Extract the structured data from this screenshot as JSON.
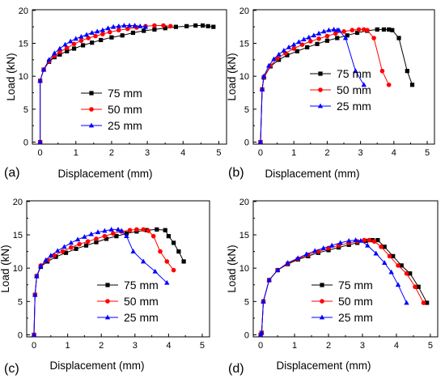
{
  "figure": {
    "series_styles": [
      {
        "name": "75 mm",
        "color": "#000000",
        "marker": "square"
      },
      {
        "name": "50 mm",
        "color": "#ff0000",
        "marker": "circle"
      },
      {
        "name": "25 mm",
        "color": "#0000ff",
        "marker": "triangle"
      }
    ]
  },
  "chart_data": [
    {
      "type": "line",
      "panel_label": "(a)",
      "xlabel": "Displacement (mm)",
      "ylabel": "Load (kN)",
      "xlim": [
        0,
        5
      ],
      "ylim": [
        0,
        20
      ],
      "xticks": [
        0,
        1,
        2,
        3,
        4,
        5
      ],
      "yticks": [
        0,
        5,
        10,
        15,
        20
      ],
      "legend": "center-right",
      "series": [
        {
          "name": "75 mm",
          "x": [
            0,
            0,
            0.1,
            0.25,
            0.4,
            0.55,
            0.75,
            0.95,
            1.2,
            1.45,
            1.7,
            2.0,
            2.3,
            2.6,
            2.9,
            3.2,
            3.5,
            3.8,
            4.1,
            4.35,
            4.55,
            4.7,
            4.85
          ],
          "y": [
            0,
            9.3,
            11.0,
            12.2,
            12.9,
            13.3,
            13.8,
            14.2,
            14.7,
            15.1,
            15.5,
            15.9,
            16.2,
            16.6,
            16.9,
            17.1,
            17.3,
            17.5,
            17.6,
            17.7,
            17.7,
            17.6,
            17.5
          ]
        },
        {
          "name": "50 mm",
          "x": [
            0,
            0,
            0.1,
            0.25,
            0.4,
            0.55,
            0.75,
            0.95,
            1.15,
            1.35,
            1.55,
            1.75,
            1.95,
            2.2,
            2.45,
            2.7,
            2.95,
            3.2,
            3.45,
            3.65
          ],
          "y": [
            0,
            9.3,
            11.0,
            12.3,
            13.1,
            13.7,
            14.3,
            14.9,
            15.4,
            15.8,
            16.1,
            16.4,
            16.7,
            17.0,
            17.2,
            17.4,
            17.6,
            17.7,
            17.7,
            17.6
          ]
        },
        {
          "name": "25 mm",
          "x": [
            0,
            0,
            0.1,
            0.25,
            0.4,
            0.55,
            0.7,
            0.85,
            1.0,
            1.15,
            1.3,
            1.45,
            1.6,
            1.75,
            1.9,
            2.05,
            2.2,
            2.35,
            2.5,
            2.65,
            2.8,
            2.95
          ],
          "y": [
            0,
            9.3,
            11.0,
            12.5,
            13.5,
            14.2,
            14.8,
            15.3,
            15.7,
            16.0,
            16.3,
            16.6,
            16.8,
            17.0,
            17.3,
            17.5,
            17.6,
            17.7,
            17.7,
            17.7,
            17.6,
            17.5
          ]
        }
      ]
    },
    {
      "type": "line",
      "panel_label": "(b)",
      "xlabel": "Displacement (mm)",
      "ylabel": "Load (kN)",
      "xlim": [
        0,
        5
      ],
      "ylim": [
        0,
        20
      ],
      "xticks": [
        0,
        1,
        2,
        3,
        4,
        5
      ],
      "yticks": [
        0,
        5,
        10,
        15,
        20
      ],
      "legend": "bottom-right",
      "series": [
        {
          "name": "75 mm",
          "x": [
            0,
            0.05,
            0.1,
            0.3,
            0.55,
            0.8,
            1.1,
            1.4,
            1.7,
            2.0,
            2.3,
            2.6,
            2.9,
            3.2,
            3.5,
            3.7,
            3.85,
            3.95,
            4.15,
            4.4,
            4.55
          ],
          "y": [
            0,
            8.0,
            9.8,
            11.5,
            12.5,
            13.2,
            13.8,
            14.4,
            14.9,
            15.4,
            15.8,
            16.2,
            16.6,
            16.9,
            17.1,
            17.1,
            17.1,
            17.0,
            15.8,
            10.8,
            8.7
          ]
        },
        {
          "name": "50 mm",
          "x": [
            0,
            0.05,
            0.1,
            0.3,
            0.5,
            0.75,
            1.0,
            1.25,
            1.5,
            1.75,
            2.0,
            2.25,
            2.5,
            2.75,
            2.95,
            3.1,
            3.2,
            3.4,
            3.65,
            3.85
          ],
          "y": [
            0,
            8.0,
            9.9,
            11.6,
            12.7,
            13.5,
            14.2,
            14.8,
            15.3,
            15.7,
            16.1,
            16.5,
            16.8,
            17.0,
            17.1,
            17.1,
            17.0,
            15.8,
            10.8,
            8.7
          ]
        },
        {
          "name": "25 mm",
          "x": [
            0,
            0.05,
            0.1,
            0.25,
            0.4,
            0.55,
            0.7,
            0.85,
            1.0,
            1.15,
            1.3,
            1.45,
            1.6,
            1.75,
            1.9,
            2.05,
            2.2,
            2.3,
            2.35,
            2.55,
            2.85,
            3.1
          ],
          "y": [
            0,
            8.0,
            10.0,
            11.6,
            12.6,
            13.3,
            13.9,
            14.4,
            14.8,
            15.2,
            15.6,
            15.9,
            16.2,
            16.5,
            16.8,
            17.0,
            17.1,
            17.0,
            17.0,
            15.8,
            10.8,
            8.7
          ]
        }
      ]
    },
    {
      "type": "line",
      "panel_label": "(c)",
      "xlabel": "Displacement (mm)",
      "ylabel": "Load (kN)",
      "xlim": [
        0,
        5
      ],
      "ylim": [
        0,
        20
      ],
      "xticks": [
        0,
        1,
        2,
        3,
        4,
        5
      ],
      "yticks": [
        0,
        5,
        10,
        15,
        20
      ],
      "legend": "bottom-right",
      "series": [
        {
          "name": "75 mm",
          "x": [
            0,
            0.03,
            0.08,
            0.2,
            0.4,
            0.65,
            0.95,
            1.25,
            1.55,
            1.85,
            2.15,
            2.45,
            2.75,
            3.05,
            3.35,
            3.65,
            3.9,
            4.0,
            4.15,
            4.3,
            4.45
          ],
          "y": [
            0,
            6.0,
            8.8,
            10.2,
            11.0,
            11.7,
            12.3,
            12.9,
            13.4,
            13.9,
            14.4,
            14.8,
            15.2,
            15.5,
            15.7,
            15.8,
            15.7,
            14.8,
            13.8,
            12.5,
            11.0
          ]
        },
        {
          "name": "50 mm",
          "x": [
            0,
            0.03,
            0.08,
            0.2,
            0.4,
            0.6,
            0.85,
            1.1,
            1.35,
            1.6,
            1.85,
            2.1,
            2.35,
            2.6,
            2.85,
            3.05,
            3.25,
            3.4,
            3.55,
            3.75,
            3.95,
            4.15
          ],
          "y": [
            0,
            6.0,
            8.8,
            10.4,
            11.2,
            11.9,
            12.5,
            13.1,
            13.6,
            14.0,
            14.4,
            14.8,
            15.2,
            15.5,
            15.7,
            15.8,
            15.8,
            15.6,
            14.8,
            12.5,
            11.0,
            9.7
          ]
        },
        {
          "name": "25 mm",
          "x": [
            0,
            0.03,
            0.08,
            0.2,
            0.35,
            0.5,
            0.7,
            0.9,
            1.1,
            1.3,
            1.5,
            1.7,
            1.9,
            2.1,
            2.3,
            2.5,
            2.6,
            2.75,
            2.95,
            3.25,
            3.6,
            3.95
          ],
          "y": [
            0,
            6.0,
            8.8,
            10.3,
            11.2,
            11.9,
            12.6,
            13.2,
            13.8,
            14.3,
            14.7,
            15.1,
            15.4,
            15.6,
            15.8,
            15.8,
            15.6,
            14.8,
            12.5,
            11.0,
            9.5,
            7.8
          ]
        }
      ]
    },
    {
      "type": "line",
      "panel_label": "(d)",
      "xlabel": "Displacement (mm)",
      "ylabel": "Load (kN)",
      "xlim": [
        0,
        5
      ],
      "ylim": [
        0,
        20
      ],
      "xticks": [
        0,
        1,
        2,
        3,
        4,
        5
      ],
      "yticks": [
        0,
        5,
        10,
        15,
        20
      ],
      "legend": "bottom-right",
      "series": [
        {
          "name": "75 mm",
          "x": [
            0,
            0.03,
            0.08,
            0.25,
            0.5,
            0.8,
            1.1,
            1.4,
            1.7,
            2.0,
            2.3,
            2.6,
            2.85,
            3.1,
            3.3,
            3.45,
            3.65,
            3.9,
            4.15,
            4.4,
            4.65,
            4.9
          ],
          "y": [
            0,
            0.3,
            5.0,
            8.2,
            9.7,
            10.6,
            11.3,
            11.8,
            12.3,
            12.7,
            13.1,
            13.5,
            13.8,
            14.1,
            14.2,
            14.2,
            13.2,
            11.8,
            10.4,
            9.2,
            7.2,
            4.8
          ]
        },
        {
          "name": "50 mm",
          "x": [
            0,
            0.03,
            0.08,
            0.25,
            0.5,
            0.8,
            1.1,
            1.4,
            1.7,
            2.0,
            2.3,
            2.6,
            2.85,
            3.05,
            3.2,
            3.35,
            3.55,
            3.8,
            4.05,
            4.3,
            4.55,
            4.8
          ],
          "y": [
            0,
            0.3,
            5.0,
            8.2,
            9.7,
            10.7,
            11.4,
            12.0,
            12.5,
            13.0,
            13.4,
            13.8,
            14.0,
            14.2,
            14.2,
            14.0,
            13.2,
            11.8,
            10.4,
            9.2,
            7.2,
            4.8
          ]
        },
        {
          "name": "25 mm",
          "x": [
            0,
            0.03,
            0.08,
            0.25,
            0.5,
            0.8,
            1.1,
            1.35,
            1.6,
            1.85,
            2.1,
            2.35,
            2.6,
            2.8,
            2.95,
            3.15,
            3.4,
            3.65,
            3.85,
            4.05,
            4.3
          ],
          "y": [
            0,
            0.3,
            5.0,
            8.2,
            9.7,
            10.8,
            11.5,
            12.1,
            12.6,
            13.0,
            13.4,
            13.8,
            14.1,
            14.2,
            14.1,
            13.4,
            12.2,
            10.8,
            9.4,
            7.5,
            4.8
          ]
        }
      ]
    }
  ]
}
